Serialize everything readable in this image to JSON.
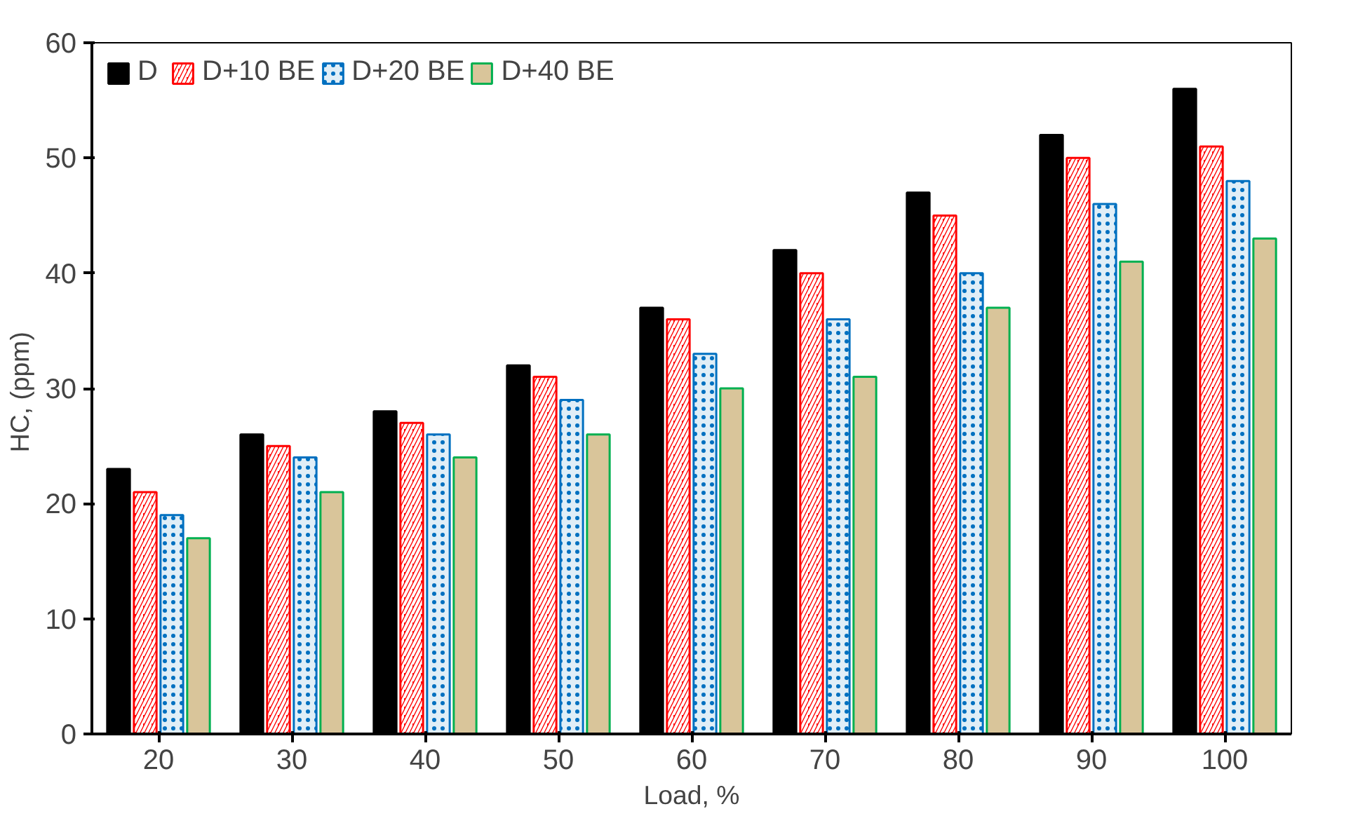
{
  "chart_data": {
    "type": "bar",
    "xlabel": "Load, %",
    "ylabel": "HC,  (ppm)",
    "categories": [
      "20",
      "30",
      "40",
      "50",
      "60",
      "70",
      "80",
      "90",
      "100"
    ],
    "series": [
      {
        "name": "D",
        "color": "#000000",
        "values": [
          23,
          26,
          28,
          32,
          37,
          42,
          47,
          52,
          56
        ]
      },
      {
        "name": "D+10 BE",
        "color": "#ff0000",
        "values": [
          21,
          25,
          27,
          31,
          36,
          40,
          45,
          50,
          51
        ]
      },
      {
        "name": "D+20 BE",
        "color": "#0070c0",
        "values": [
          19,
          24,
          26,
          29,
          33,
          36,
          40,
          46,
          48
        ]
      },
      {
        "name": "D+40 BE",
        "color": "#d9c59a",
        "values": [
          17,
          21,
          24,
          26,
          30,
          31,
          37,
          41,
          43
        ]
      }
    ],
    "ylim": [
      0,
      60
    ],
    "yticks": [
      0,
      10,
      20,
      30,
      40,
      50,
      60
    ],
    "grid": false,
    "legend": "top left"
  }
}
